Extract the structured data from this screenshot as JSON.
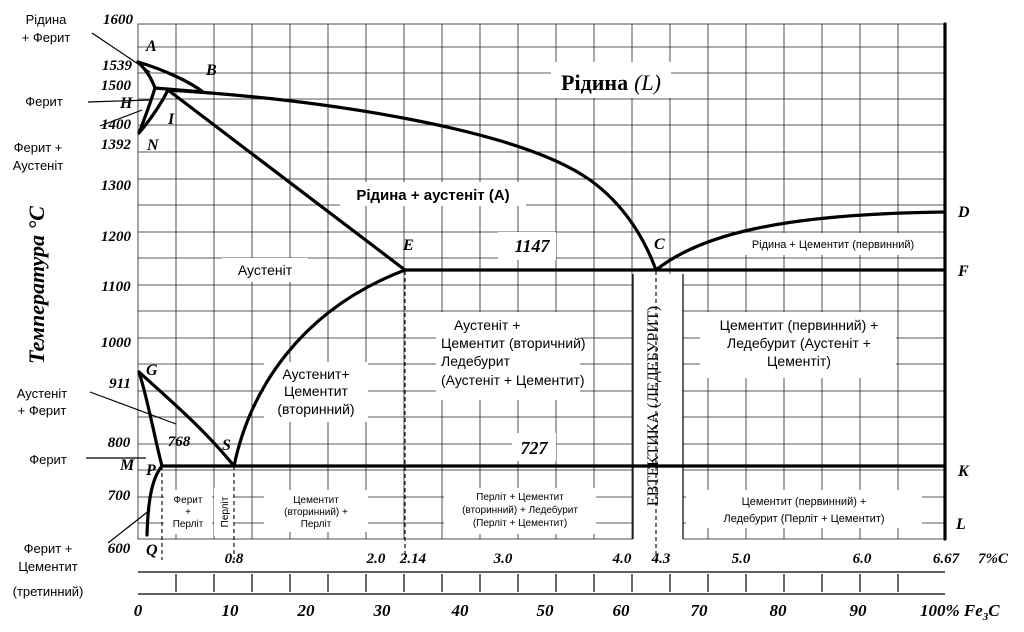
{
  "y_axis": {
    "title": "Температура °С",
    "ticks": [
      "1600",
      "1539",
      "1500",
      "1400",
      "1392",
      "1300",
      "1200",
      "1100",
      "1000",
      "911",
      "800",
      "700",
      "600"
    ]
  },
  "x_axis_carbon": {
    "unit": "%C",
    "ticks": [
      "0.8",
      "2.0",
      "2.14",
      "3.0",
      "4.0",
      "4.3",
      "5.0",
      "6.0",
      "6.67",
      "7"
    ]
  },
  "x_axis_fe3c": {
    "unit": "% Fe",
    "unit_subscript": "3",
    "unit_suffix": "C",
    "ticks": [
      "0",
      "10",
      "20",
      "30",
      "40",
      "50",
      "60",
      "70",
      "80",
      "90",
      "100"
    ]
  },
  "points": {
    "A": "A",
    "B": "B",
    "H": "H",
    "I": "I",
    "N": "N",
    "E": "E",
    "C": "C",
    "D": "D",
    "F": "F",
    "G": "G",
    "S": "S",
    "M": "M",
    "P": "P",
    "Q": "Q",
    "K": "K",
    "L": "L"
  },
  "isotherms": {
    "eutectic": "1147",
    "eutectoid": "727",
    "curie": "768"
  },
  "regions": {
    "liquid_main": "Рідина",
    "liquid_symbol": "(L)",
    "liquid_austenite": "Рідина + аустеніт (А)",
    "liquid_cementite": "Рідина + Цементит (первинний)",
    "austenite": "Аустеніт",
    "austenite_cementite": [
      "Аустенит+",
      "Цементит",
      "(вторинний)"
    ],
    "hypo_eutectic": [
      "Аустеніт +",
      "Цементит (вторичний)",
      "Ледебурит",
      "(Аустеніт + Цементит)"
    ],
    "hyper_eutectic": [
      "Цементит (первинний) +",
      "Ледебурит (Аустеніт +",
      "Цементіт)"
    ],
    "eutectic_line": "ЕВТЕКТИКА (ЛЕДЕБУРИТ)",
    "ferrite_pearlite": [
      "Ферит",
      "+",
      "Перліт"
    ],
    "pearlite": "Перліт",
    "cementite_pearlite": [
      "Цементит",
      "(вторинний) +",
      "Перліт"
    ],
    "pearlite_ledeburite": [
      "Перліт + Цементит",
      "(вторинний) + Ледебурит",
      "(Перліт + Цементит)"
    ],
    "cementite_ledeburite_low": [
      "Цементит  (первинний) +",
      "Ледебурит (Перліт + Цементит)"
    ]
  },
  "side_labels": {
    "liquid_ferrite": [
      "Рідина",
      "+ Ферит"
    ],
    "ferrite_top": "Ферит",
    "ferrite_austenite": [
      "Ферит +",
      "Аустеніт"
    ],
    "austenite_ferrite": [
      "Аустеніт",
      "+ Ферит"
    ],
    "ferrite_low": "Ферит",
    "ferrite_cementite": [
      "Ферит +",
      "Цементит",
      "(третинний)"
    ]
  }
}
